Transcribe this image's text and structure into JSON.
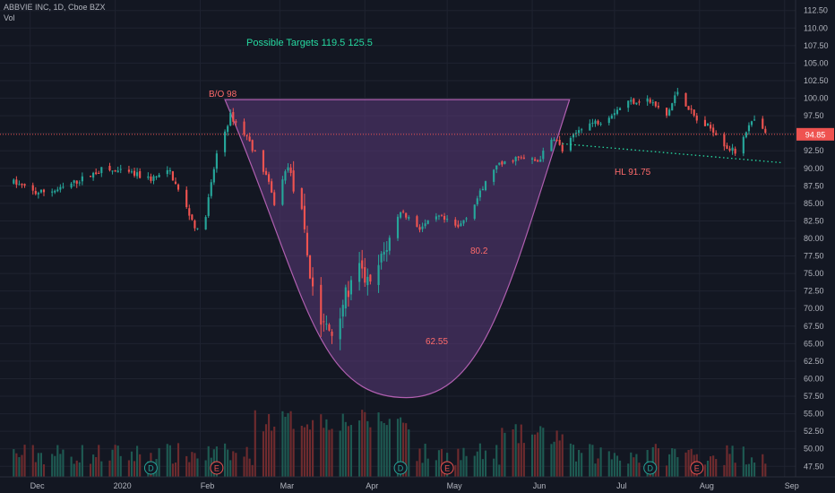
{
  "header": {
    "symbol_line": "ABBVIE INC, 1D, Cboe BZX",
    "vol_label": "Vol"
  },
  "chart_data": {
    "type": "candlestick",
    "title": "ABBVIE INC, 1D, Cboe BZX",
    "colors": {
      "background": "#131722",
      "grid": "#1f2330",
      "up": "#26a69a",
      "down": "#ef5350",
      "up_volume": "#1e5a52",
      "down_volume": "#6e2b2e",
      "cup_fill": "#5b3a7a",
      "cup_stroke": "#b05fb0",
      "price_line": "#ef5350",
      "annotation_green": "#26d9a0",
      "annotation_red": "#ff6b6b",
      "axis_text": "#b2b5be"
    },
    "ylim": [
      46,
      114
    ],
    "y_ticks": [
      "112.50",
      "110.00",
      "107.50",
      "105.00",
      "102.50",
      "100.00",
      "97.50",
      "95.00",
      "92.50",
      "90.00",
      "87.50",
      "85.00",
      "82.50",
      "80.00",
      "77.50",
      "75.00",
      "72.50",
      "70.00",
      "67.50",
      "65.00",
      "62.50",
      "60.00",
      "57.50",
      "55.00",
      "52.50",
      "50.00",
      "47.50"
    ],
    "x_labels": [
      "Dec",
      "2020",
      "Feb",
      "Mar",
      "Apr",
      "May",
      "Jun",
      "Jul",
      "Aug",
      "Sep"
    ],
    "last_price": {
      "value": 94.85,
      "label": "94.85"
    },
    "event_markers": [
      {
        "label": "D",
        "date": "2020-01-14"
      },
      {
        "label": "E",
        "date": "2020-02-07"
      },
      {
        "label": "D",
        "date": "2020-04-14"
      },
      {
        "label": "E",
        "date": "2020-05-01"
      },
      {
        "label": "D",
        "date": "2020-07-14"
      },
      {
        "label": "E",
        "date": "2020-07-31"
      }
    ],
    "annotations": {
      "targets": "Possible Targets  119.5   125.5",
      "bo": "B/O 98",
      "v80": "80.2",
      "v62": "62.55",
      "hl": "HL 91.75"
    },
    "cup": {
      "rim_price": 99.8,
      "bottom_price": 57.3,
      "start_date": "2020-02-10",
      "end_date": "2020-06-12",
      "bottom_date": "2020-04-16"
    },
    "trendline": {
      "start_date": "2020-06-12",
      "start_price": 93.5,
      "end_date": "2020-08-31",
      "end_price": 90.8
    },
    "segments": [
      {
        "date": "2019-11-25",
        "price": 88.0
      },
      {
        "date": "2019-12-03",
        "price": 86.5
      },
      {
        "date": "2019-12-12",
        "price": 87.0
      },
      {
        "date": "2019-12-20",
        "price": 88.5
      },
      {
        "date": "2019-12-27",
        "price": 89.8
      },
      {
        "date": "2020-01-06",
        "price": 89.3
      },
      {
        "date": "2020-01-14",
        "price": 88.5
      },
      {
        "date": "2020-01-21",
        "price": 89.5
      },
      {
        "date": "2020-01-24",
        "price": 86.8
      },
      {
        "date": "2020-01-31",
        "price": 81.0
      },
      {
        "date": "2020-02-03",
        "price": 83.5
      },
      {
        "date": "2020-02-07",
        "price": 92.0
      },
      {
        "date": "2020-02-12",
        "price": 97.5
      },
      {
        "date": "2020-02-18",
        "price": 94.5
      },
      {
        "date": "2020-02-25",
        "price": 89.0
      },
      {
        "date": "2020-02-28",
        "price": 85.0
      },
      {
        "date": "2020-03-04",
        "price": 90.5
      },
      {
        "date": "2020-03-09",
        "price": 83.0
      },
      {
        "date": "2020-03-12",
        "price": 75.0
      },
      {
        "date": "2020-03-16",
        "price": 68.0
      },
      {
        "date": "2020-03-20",
        "price": 66.5
      },
      {
        "date": "2020-03-24",
        "price": 71.0
      },
      {
        "date": "2020-03-30",
        "price": 75.5
      },
      {
        "date": "2020-04-03",
        "price": 73.0
      },
      {
        "date": "2020-04-09",
        "price": 79.0
      },
      {
        "date": "2020-04-14",
        "price": 84.0
      },
      {
        "date": "2020-04-21",
        "price": 81.5
      },
      {
        "date": "2020-04-28",
        "price": 83.0
      },
      {
        "date": "2020-05-05",
        "price": 81.5
      },
      {
        "date": "2020-05-11",
        "price": 85.0
      },
      {
        "date": "2020-05-18",
        "price": 90.0
      },
      {
        "date": "2020-05-26",
        "price": 91.5
      },
      {
        "date": "2020-06-03",
        "price": 91.0
      },
      {
        "date": "2020-06-09",
        "price": 94.5
      },
      {
        "date": "2020-06-12",
        "price": 92.5
      },
      {
        "date": "2020-06-19",
        "price": 96.0
      },
      {
        "date": "2020-06-26",
        "price": 96.8
      },
      {
        "date": "2020-07-06",
        "price": 99.5
      },
      {
        "date": "2020-07-13",
        "price": 99.8
      },
      {
        "date": "2020-07-20",
        "price": 97.5
      },
      {
        "date": "2020-07-24",
        "price": 101.0
      },
      {
        "date": "2020-07-31",
        "price": 96.8
      },
      {
        "date": "2020-08-06",
        "price": 95.5
      },
      {
        "date": "2020-08-11",
        "price": 93.0
      },
      {
        "date": "2020-08-14",
        "price": 92.3
      },
      {
        "date": "2020-08-18",
        "price": 95.5
      },
      {
        "date": "2020-08-21",
        "price": 96.8
      },
      {
        "date": "2020-08-25",
        "price": 94.85
      }
    ]
  }
}
